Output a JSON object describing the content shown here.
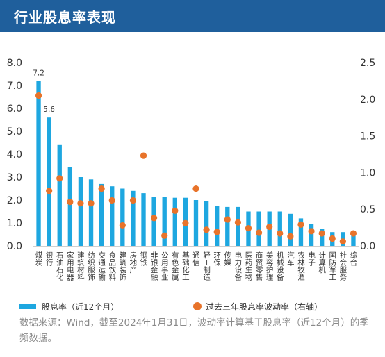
{
  "header": {
    "title": "行业股息率表现"
  },
  "chart_data": {
    "type": "bar",
    "categories": [
      "煤炭",
      "银行",
      "石油石化",
      "家用电器",
      "建筑材料",
      "纺织服饰",
      "交通运输",
      "食品饮料",
      "建筑装饰",
      "房地产",
      "钢铁",
      "非银金融",
      "公用事业",
      "有色金属",
      "基础化工",
      "通信",
      "轻工制造",
      "环保",
      "传媒",
      "电力设备",
      "医药生物",
      "商贸零售",
      "美容护理",
      "机械设备",
      "汽车",
      "农林牧渔",
      "电子",
      "计算机",
      "国防军工",
      "社会服务",
      "综合"
    ],
    "series": [
      {
        "name": "股息率（近12个月）",
        "axis": "left",
        "type": "bar",
        "color": "#1ea7e0",
        "values": [
          7.2,
          5.6,
          4.4,
          3.45,
          3.0,
          2.9,
          2.7,
          2.6,
          2.5,
          2.4,
          2.3,
          2.15,
          2.15,
          2.1,
          2.1,
          2.0,
          1.95,
          1.75,
          1.7,
          1.7,
          1.5,
          1.5,
          1.5,
          1.5,
          1.4,
          1.2,
          0.95,
          0.75,
          0.6,
          0.6,
          0.5
        ]
      },
      {
        "name": "过去三年股息率波动率（右轴）",
        "axis": "right",
        "type": "scatter",
        "color": "#e8732a",
        "values": [
          2.05,
          0.75,
          0.92,
          0.6,
          0.58,
          0.58,
          0.78,
          0.62,
          0.28,
          0.62,
          1.23,
          0.38,
          0.14,
          0.48,
          0.31,
          0.78,
          0.22,
          0.19,
          0.36,
          0.32,
          0.24,
          0.18,
          0.26,
          0.17,
          0.13,
          0.29,
          0.2,
          0.17,
          0.1,
          0.06,
          0.17
        ]
      }
    ],
    "data_labels": [
      "7.2",
      "5.6"
    ],
    "y_left": {
      "min": 0,
      "max": 8,
      "ticks": [
        "0.0",
        "1.0",
        "2.0",
        "3.0",
        "4.0",
        "5.0",
        "6.0",
        "7.0",
        "8.0"
      ]
    },
    "y_right": {
      "min": 0,
      "max": 2.5,
      "ticks": [
        "0.0",
        "0.5",
        "1.0",
        "1.5",
        "2.0",
        "2.5"
      ]
    },
    "grid": false,
    "legend_position": "bottom"
  },
  "legend": {
    "bar_label": "股息率（近12个月）",
    "dot_label": "过去三年股息率波动率（右轴）"
  },
  "footnote": "数据来源：Wind，截至2024年1月31日，波动率计算基于股息率（近12个月）的季频数据。",
  "colors": {
    "header": "#1f5f9c",
    "bar": "#1ea7e0",
    "dot": "#e8732a"
  }
}
